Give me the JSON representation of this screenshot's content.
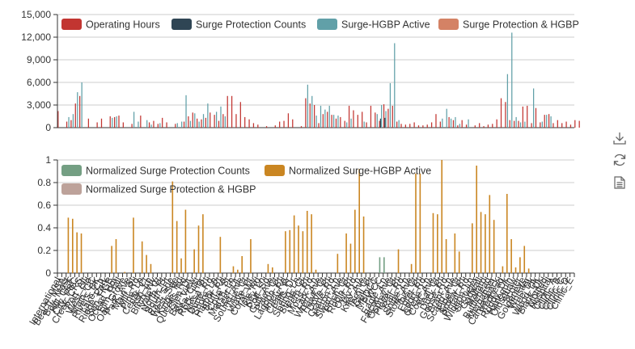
{
  "chart_data": [
    {
      "type": "bar",
      "ylim": [
        0,
        15000
      ],
      "yticks": [
        "0",
        "3,000",
        "6,000",
        "9,000",
        "12,000",
        "15,000"
      ],
      "grid": true,
      "legend": "top",
      "series": [
        {
          "name": "Operating Hours",
          "color": "#c23531",
          "values": [
            2200,
            0,
            800,
            1000,
            3200,
            4200,
            0,
            1200,
            0,
            700,
            1200,
            0,
            1500,
            1400,
            1600,
            700,
            0,
            500,
            0,
            1600,
            0,
            700,
            900,
            500,
            1300,
            700,
            0,
            500,
            0,
            800,
            1500,
            2000,
            1200,
            1100,
            1300,
            2000,
            1700,
            900,
            1800,
            4200,
            4200,
            1800,
            3400,
            1400,
            1100,
            600,
            400,
            0,
            200,
            0,
            300,
            800,
            900,
            1900,
            1100,
            0,
            200,
            3900,
            3200,
            3000,
            600,
            1800,
            2100,
            1700,
            1200,
            1400,
            900,
            2900,
            2300,
            1700,
            2100,
            700,
            2900,
            2000,
            900,
            3100,
            2500,
            2900,
            800,
            500,
            400,
            500,
            700,
            300,
            300,
            400,
            700,
            1800,
            800,
            0,
            1400,
            1000,
            300,
            1000,
            400,
            0,
            300,
            600,
            200,
            400,
            500,
            1100,
            3900,
            3400,
            1000,
            900,
            900,
            2800,
            2900,
            600,
            2600,
            700,
            1700,
            1800,
            600,
            1000,
            600,
            800,
            400,
            1000,
            900
          ]
        },
        {
          "name": "Surge Protection Counts",
          "color": "#2f4554",
          "values": [
            0,
            0,
            0,
            0,
            0,
            0,
            0,
            0,
            0,
            0,
            0,
            0,
            0,
            0,
            0,
            0,
            0,
            0,
            0,
            0,
            0,
            0,
            0,
            0,
            0,
            0,
            0,
            0,
            0,
            0,
            0,
            0,
            0,
            0,
            0,
            0,
            0,
            0,
            0,
            0,
            0,
            0,
            0,
            0,
            0,
            0,
            0,
            0,
            0,
            0,
            0,
            0,
            0,
            0,
            0,
            0,
            0,
            0,
            0,
            0,
            0,
            0,
            0,
            0,
            0,
            0,
            0,
            0,
            0,
            0,
            0,
            0,
            0,
            0,
            1200,
            1300,
            0,
            0,
            0,
            0,
            0,
            0,
            0,
            0,
            0,
            0,
            0,
            0,
            0,
            0,
            0,
            0,
            0,
            0,
            0,
            0,
            0,
            0,
            0,
            0,
            0,
            0,
            0,
            0,
            0,
            0,
            0,
            0,
            0,
            0,
            0,
            0,
            0,
            0,
            0,
            0,
            0,
            0,
            0
          ]
        },
        {
          "name": "Surge-HGBP Active",
          "color": "#61a0a8",
          "values": [
            0,
            0,
            1400,
            1800,
            4700,
            6000,
            0,
            0,
            0,
            0,
            0,
            0,
            1300,
            1500,
            0,
            0,
            0,
            2100,
            800,
            0,
            1000,
            400,
            0,
            600,
            0,
            0,
            0,
            600,
            800,
            4300,
            900,
            1900,
            800,
            1800,
            3200,
            0,
            2100,
            2800,
            1500,
            0,
            0,
            0,
            0,
            0,
            0,
            0,
            0,
            0,
            0,
            0,
            0,
            0,
            0,
            0,
            0,
            0,
            0,
            5700,
            4200,
            1600,
            2900,
            2400,
            2900,
            1700,
            1600,
            0,
            700,
            1200,
            0,
            0,
            800,
            0,
            0,
            1800,
            3000,
            2200,
            5900,
            11200,
            1000,
            0,
            0,
            0,
            0,
            0,
            0,
            0,
            0,
            0,
            1200,
            2500,
            1200,
            1400,
            500,
            0,
            1100,
            0,
            0,
            0,
            0,
            0,
            0,
            0,
            0,
            7100,
            12600,
            1400,
            700,
            800,
            0,
            5200,
            0,
            800,
            1700,
            1500,
            0,
            0,
            0,
            0,
            0,
            0,
            0
          ]
        },
        {
          "name": "Surge Protection & HGBP",
          "color": "#d48265",
          "values": [
            0,
            0,
            0,
            0,
            0,
            0,
            0,
            0,
            0,
            0,
            0,
            0,
            0,
            0,
            0,
            0,
            0,
            0,
            0,
            0,
            0,
            0,
            0,
            0,
            0,
            0,
            0,
            0,
            0,
            0,
            0,
            0,
            0,
            0,
            0,
            0,
            0,
            0,
            0,
            0,
            0,
            0,
            0,
            0,
            0,
            0,
            0,
            0,
            0,
            0,
            0,
            0,
            0,
            0,
            0,
            0,
            0,
            0,
            0,
            0,
            0,
            0,
            0,
            0,
            0,
            0,
            0,
            0,
            0,
            0,
            0,
            0,
            0,
            0,
            0,
            0,
            0,
            0,
            0,
            0,
            0,
            0,
            0,
            0,
            0,
            0,
            0,
            0,
            0,
            0,
            0,
            0,
            0,
            0,
            0,
            0,
            0,
            0,
            0,
            0,
            0,
            0,
            0,
            0,
            0,
            0,
            0,
            0,
            0,
            0,
            0,
            0,
            0,
            0,
            0,
            0,
            0,
            0,
            0
          ]
        }
      ]
    },
    {
      "type": "bar",
      "ylim": [
        0,
        1
      ],
      "yticks": [
        "0",
        "0.2",
        "0.4",
        "0.6",
        "0.8",
        "1"
      ],
      "grid": true,
      "legend": "top",
      "series": [
        {
          "name": "Normalized Surge Protection Counts",
          "color": "#749f83",
          "values": [
            0,
            0,
            0,
            0,
            0,
            0,
            0,
            0,
            0,
            0,
            0,
            0,
            0,
            0,
            0,
            0,
            0,
            0,
            0,
            0,
            0,
            0,
            0,
            0,
            0,
            0,
            0,
            0,
            0,
            0,
            0,
            0,
            0,
            0,
            0,
            0,
            0,
            0,
            0,
            0,
            0,
            0,
            0,
            0,
            0,
            0,
            0,
            0,
            0,
            0,
            0,
            0,
            0,
            0,
            0,
            0,
            0,
            0,
            0,
            0,
            0,
            0,
            0,
            0,
            0,
            0,
            0,
            0,
            0,
            0,
            0,
            0,
            0,
            0,
            0.14,
            0.14,
            0,
            0,
            0,
            0,
            0,
            0,
            0,
            0,
            0,
            0,
            0,
            0,
            0,
            0,
            0,
            0,
            0,
            0,
            0,
            0,
            0,
            0,
            0,
            0,
            0,
            0,
            0,
            0,
            0,
            0,
            0,
            0,
            0,
            0,
            0,
            0,
            0,
            0,
            0,
            0,
            0,
            0,
            0
          ]
        },
        {
          "name": "Normalized Surge-HGBP Active",
          "color": "#ca8622",
          "values": [
            0,
            0,
            0.49,
            0.48,
            0.36,
            0.35,
            0,
            0,
            0,
            0,
            0,
            0,
            0.24,
            0.3,
            0,
            0.01,
            0,
            0.49,
            0,
            0.28,
            0.16,
            0.08,
            0,
            0,
            0,
            0,
            0.81,
            0.46,
            0.13,
            0.56,
            0,
            0.21,
            0.42,
            0.52,
            0,
            0,
            0,
            0.32,
            0,
            0,
            0.06,
            0.03,
            0.15,
            0,
            0.3,
            0,
            0,
            0,
            0.08,
            0.05,
            0,
            0,
            0.37,
            0.38,
            0.51,
            0.42,
            0.37,
            0.55,
            0.52,
            0.03,
            0,
            0,
            0,
            0,
            0.17,
            0,
            0.35,
            0.26,
            0.56,
            0.92,
            0.5,
            0,
            0,
            0,
            0,
            0,
            0,
            0,
            0.21,
            0,
            0,
            0.08,
            0.88,
            0.88,
            0,
            0,
            0.53,
            0.52,
            1.0,
            0.3,
            0,
            0.35,
            0.19,
            0,
            0,
            0.44,
            0.95,
            0.54,
            0.52,
            0.69,
            0.47,
            0,
            0.06,
            0.7,
            0.3,
            0.05,
            0.14,
            0.24,
            0.04,
            0,
            0,
            0,
            0,
            0,
            0,
            0,
            0,
            0,
            0
          ]
        },
        {
          "name": "Normalized Surge Protection & HGBP",
          "color": "#bda29a",
          "values": [
            0,
            0,
            0,
            0,
            0,
            0,
            0,
            0,
            0,
            0,
            0,
            0,
            0,
            0,
            0,
            0,
            0,
            0,
            0,
            0,
            0,
            0,
            0,
            0,
            0,
            0,
            0,
            0,
            0,
            0,
            0,
            0,
            0,
            0,
            0,
            0,
            0,
            0,
            0,
            0,
            0,
            0,
            0,
            0,
            0,
            0,
            0,
            0,
            0,
            0,
            0,
            0,
            0,
            0,
            0,
            0,
            0,
            0,
            0,
            0,
            0,
            0,
            0,
            0,
            0,
            0,
            0,
            0,
            0,
            0,
            0,
            0,
            0,
            0,
            0,
            0,
            0,
            0,
            0,
            0,
            0,
            0,
            0,
            0,
            0,
            0,
            0,
            0,
            0,
            0,
            0,
            0,
            0,
            0,
            0,
            0,
            0,
            0,
            0,
            0,
            0,
            0,
            0,
            0,
            0,
            0,
            0,
            0,
            0,
            0,
            0,
            0,
            0,
            0,
            0,
            0,
            0,
            0,
            0
          ]
        }
      ],
      "categories": [
        "International",
        "Beach_MSA",
        "Bay_Mast",
        "Hill_CCF",
        "City_PBC",
        "Creek_CRS",
        "Port_Alt",
        "West_Fld",
        "Main_CC",
        "Rivers_BK",
        "Lake_Ctr",
        "Ridge_Park",
        "Sun_HGB",
        "Ocean_Hbr",
        "Elm_Hall",
        "Oak_Grove",
        "Park_Ave",
        "Main_St",
        "Mill_Rd",
        "Pine_Lp",
        "Cedar_Ct",
        "Ash_Ln",
        "Birch_Wy",
        "Vale_Ct",
        "North_Pt",
        "South_Pt",
        "East_Sde",
        "West_Sde",
        "Kings_Rd",
        "Queens_Rd",
        "Glen_Dr",
        "Bay_View",
        "Sea_Crst",
        "Rock_Hbr",
        "Mesa_Pt",
        "Dune_Rd",
        "Shore_Ln",
        "Harbor_Pt",
        "Bluff_Rd",
        "Cove_St",
        "Marsh_Ln",
        "Reef_Dr",
        "Sound_Ave",
        "Tide_Ct",
        "Wave_Pt",
        "Coral_Wy",
        "Isle_Rd",
        "Key_Ln",
        "Port_Sd",
        "Gulf_Ave",
        "Palm_Ct",
        "Lagoon_Pt",
        "Inlet_Rd",
        "Creek_Fr",
        "Falls_Dr",
        "Spring_Ln",
        "Stone_Ct",
        "Fern_Pt",
        "Moss_Rd",
        "Lark_Ln",
        "Wren_Ave",
        "Hawk_Ct",
        "Dove_Pt",
        "Crane_Rd",
        "Heron_Ln",
        "Swan_Ave",
        "Finch_Ct",
        "Robin_Pt",
        "Owl_Rd",
        "Jay_Ln",
        "Kite_Ave",
        "Tern_Ct",
        "Gull_Pt",
        "MEDCC",
        "PWCC",
        "Eagle_Ln",
        "Falcon_Ave",
        "Osprey_Ct",
        "Plover_Pt",
        "Rail_Rd",
        "Snipe_Ln",
        "Stork_Ave",
        "Ibis_Ct",
        "Egret_Pt",
        "Loon_Rd",
        "Grebe_Ln",
        "Coot_Ave",
        "Teal_Ct",
        "Duck_Pt",
        "Goose_Rd",
        "Brant_Ln",
        "Scaup_Ave",
        "Eider_Ct",
        "Smew_Pt",
        "Pintail_Rd",
        "Wigeon_Ln",
        "Shoveler",
        "Gadwall",
        "Mallard",
        "Bufflehead",
        "Merganser",
        "Canvasback",
        "Redhead",
        "Ruddy_Dk",
        "Harlequin",
        "Oldsquaw",
        "Scoter",
        "Goldeneye",
        "Whistler",
        "Tree_Dk",
        "Wood_Dk",
        "Black_Dk",
        "Mottled",
        "Hospital",
        "Clinic_A",
        "Clinic_B",
        "Clinic_C",
        "Clinic_D",
        "Clinic_E"
      ]
    }
  ]
}
